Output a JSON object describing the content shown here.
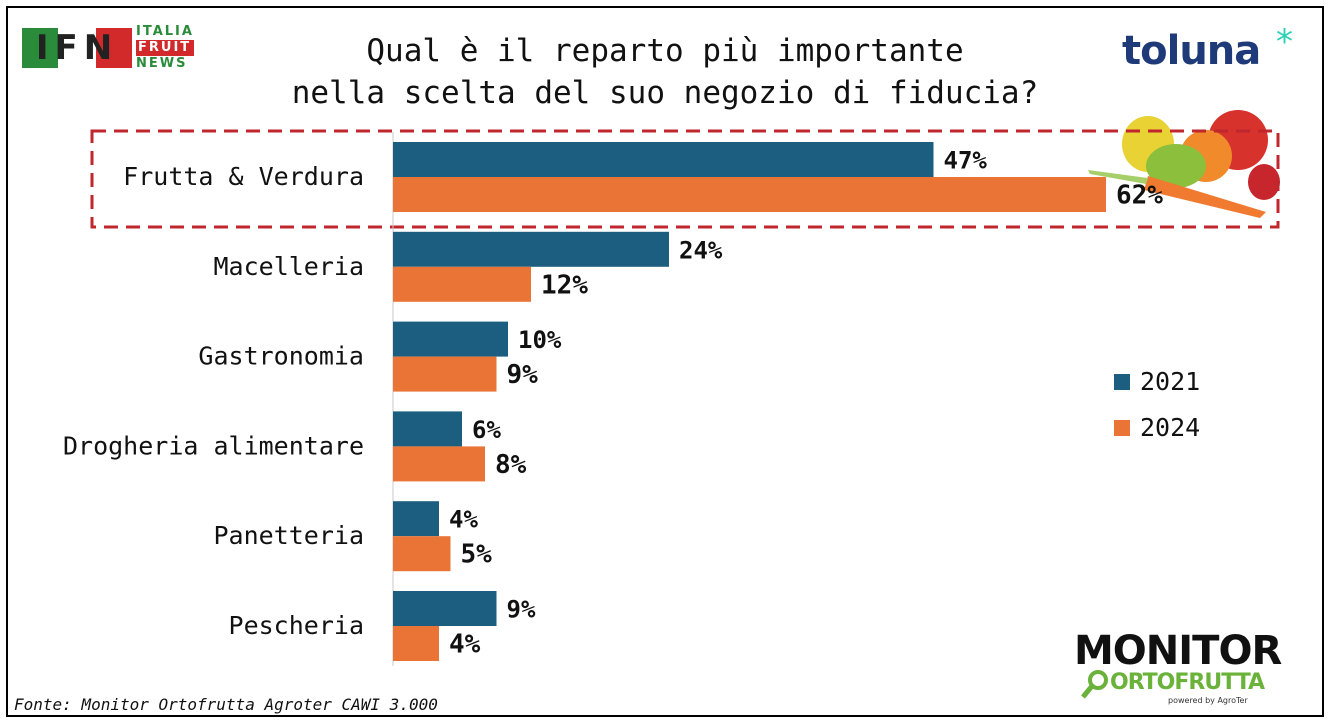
{
  "title_lines": [
    "Qual è il reparto più importante",
    "nella scelta del suo negozio di fiducia?"
  ],
  "source": "Fonte: Monitor Ortofrutta Agroter CAWI 3.000",
  "logos": {
    "ifn": {
      "letters": "IFN",
      "line1": "ITALIA",
      "line2": "FRUIT",
      "line3": "NEWS"
    },
    "toluna": {
      "text": "toluna",
      "star": "*"
    },
    "monitor": {
      "line1": "MONITOR",
      "line2": "ORTOFRUTTA",
      "line3": "powered by AgroTer"
    }
  },
  "colors": {
    "series_2021": "#1b5e80",
    "series_2024": "#ea7435",
    "highlight": "#c0272d"
  },
  "chart_data": {
    "type": "bar",
    "orientation": "horizontal",
    "categories": [
      "Frutta & Verdura",
      "Macelleria",
      "Gastronomia",
      "Drogheria alimentare",
      "Panetteria",
      "Pescheria"
    ],
    "series": [
      {
        "name": "2021",
        "values": [
          47,
          24,
          10,
          6,
          4,
          9
        ],
        "labels": [
          "47%",
          "24%",
          "10%",
          "6%",
          "4%",
          "9%"
        ]
      },
      {
        "name": "2024",
        "values": [
          62,
          12,
          9,
          8,
          5,
          4
        ],
        "labels": [
          "62%",
          "12%",
          "9%",
          "8%",
          "5%",
          "4%"
        ]
      }
    ],
    "unit": "%",
    "xlim": [
      0,
      70
    ],
    "highlighted_category": "Frutta & Verdura",
    "legend_position": "right"
  }
}
